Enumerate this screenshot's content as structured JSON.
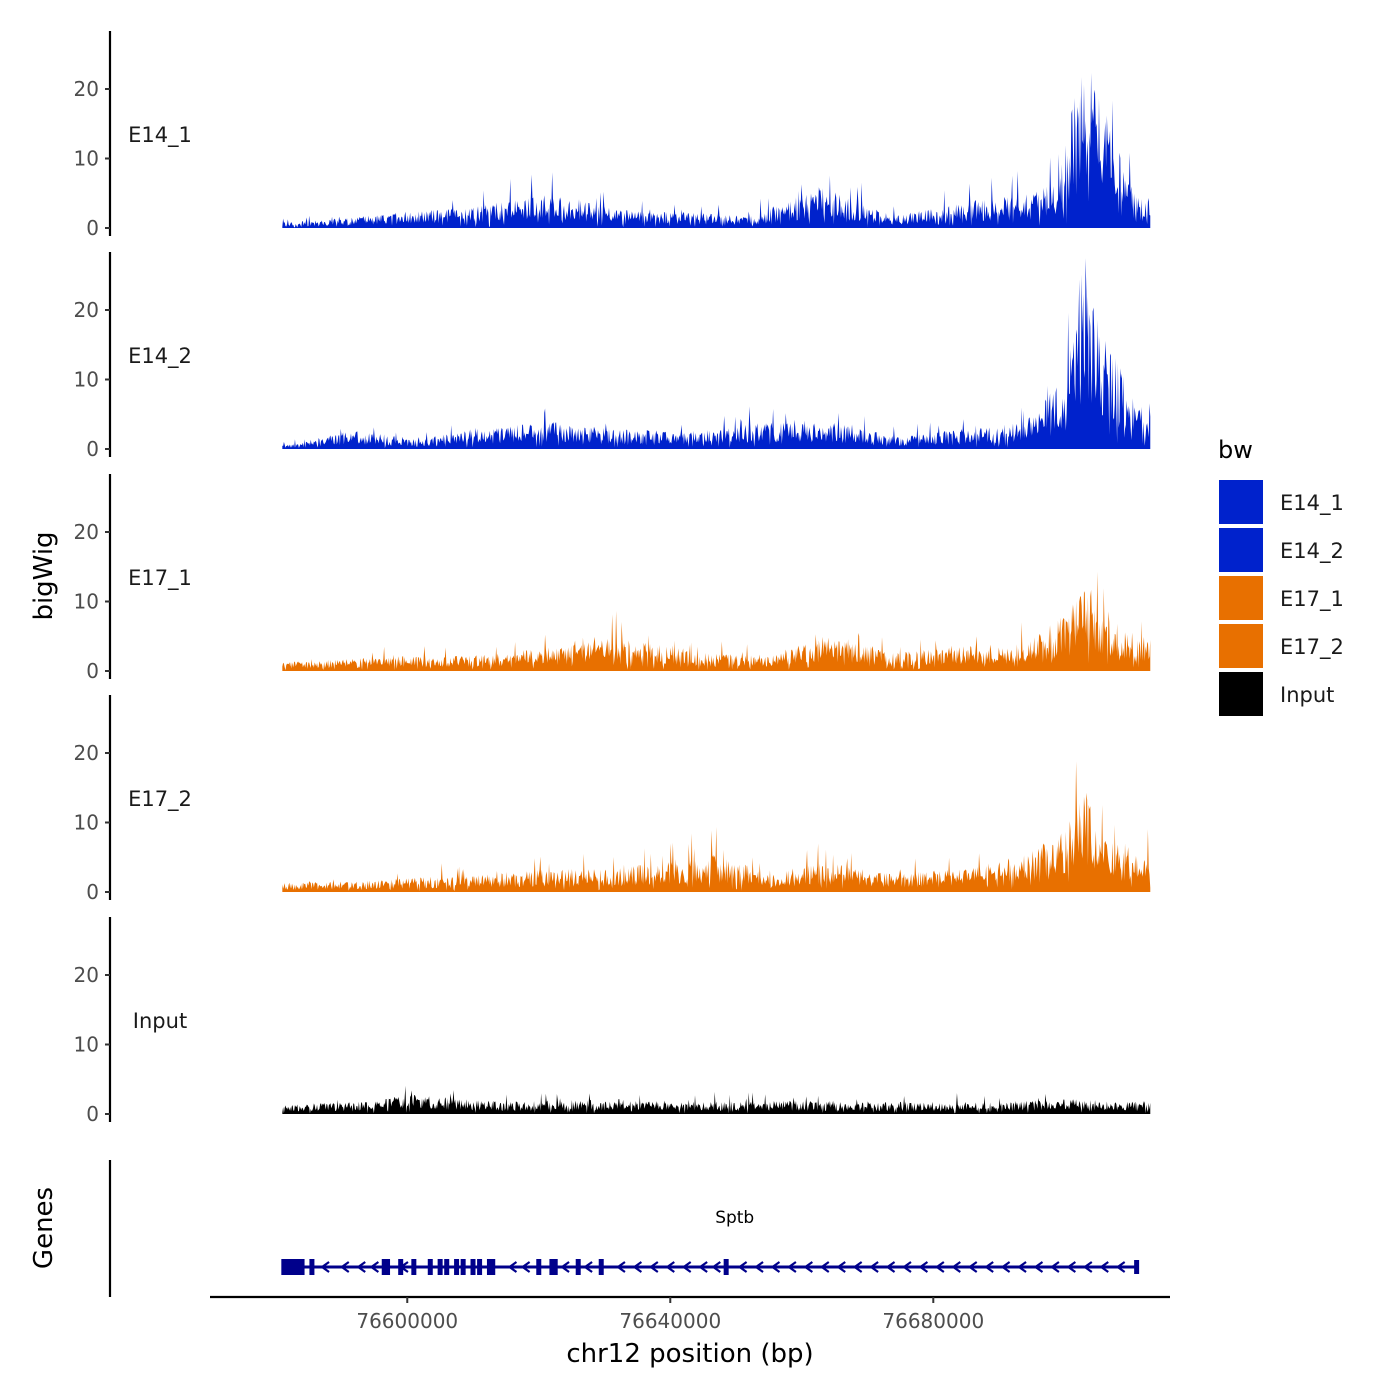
{
  "chart_data": {
    "type": "area",
    "title": "",
    "xlabel": "chr12 position (bp)",
    "ylabel": "bigWig",
    "xlim": [
      76570000,
      76716000
    ],
    "ylim": [
      0,
      28
    ],
    "x_ticks": [
      76600000,
      76640000,
      76680000
    ],
    "x_tick_labels": [
      "76600000",
      "76640000",
      "76680000"
    ],
    "y_ticks": [
      0,
      10,
      20
    ],
    "y_tick_labels": [
      "0",
      "10",
      "20"
    ],
    "data_range": [
      76581000,
      76713000
    ],
    "series": [
      {
        "name": "E14_1",
        "color": "#0022CC",
        "peaks": [
          {
            "x": 76581000,
            "y": 0.8
          },
          {
            "x": 76590000,
            "y": 1.2
          },
          {
            "x": 76600000,
            "y": 2.2
          },
          {
            "x": 76610000,
            "y": 2.8
          },
          {
            "x": 76622000,
            "y": 4.8
          },
          {
            "x": 76632000,
            "y": 2.4
          },
          {
            "x": 76645000,
            "y": 2.0
          },
          {
            "x": 76652000,
            "y": 1.6
          },
          {
            "x": 76663000,
            "y": 5.5
          },
          {
            "x": 76674000,
            "y": 1.6
          },
          {
            "x": 76686000,
            "y": 3.6
          },
          {
            "x": 76694000,
            "y": 4.5
          },
          {
            "x": 76699000,
            "y": 6.0
          },
          {
            "x": 76702000,
            "y": 19.5
          },
          {
            "x": 76704000,
            "y": 21.5
          },
          {
            "x": 76706000,
            "y": 15.5
          },
          {
            "x": 76711000,
            "y": 4.0
          }
        ]
      },
      {
        "name": "E14_2",
        "color": "#0022CC",
        "peaks": [
          {
            "x": 76582000,
            "y": 0.6
          },
          {
            "x": 76592000,
            "y": 2.6
          },
          {
            "x": 76602000,
            "y": 1.2
          },
          {
            "x": 76610000,
            "y": 2.8
          },
          {
            "x": 76622000,
            "y": 3.6
          },
          {
            "x": 76632000,
            "y": 2.6
          },
          {
            "x": 76645000,
            "y": 2.4
          },
          {
            "x": 76655000,
            "y": 3.6
          },
          {
            "x": 76663000,
            "y": 3.8
          },
          {
            "x": 76675000,
            "y": 1.6
          },
          {
            "x": 76686000,
            "y": 2.8
          },
          {
            "x": 76694000,
            "y": 3.6
          },
          {
            "x": 76700000,
            "y": 9.5
          },
          {
            "x": 76703000,
            "y": 27.0
          },
          {
            "x": 76704000,
            "y": 19.5
          },
          {
            "x": 76706000,
            "y": 15.0
          },
          {
            "x": 76711000,
            "y": 6.0
          }
        ]
      },
      {
        "name": "E17_1",
        "color": "#E87000",
        "peaks": [
          {
            "x": 76581000,
            "y": 1.2
          },
          {
            "x": 76590000,
            "y": 1.6
          },
          {
            "x": 76600000,
            "y": 2.0
          },
          {
            "x": 76610000,
            "y": 2.0
          },
          {
            "x": 76622000,
            "y": 3.2
          },
          {
            "x": 76632000,
            "y": 4.4
          },
          {
            "x": 76645000,
            "y": 2.4
          },
          {
            "x": 76655000,
            "y": 2.0
          },
          {
            "x": 76663000,
            "y": 4.6
          },
          {
            "x": 76674000,
            "y": 2.4
          },
          {
            "x": 76686000,
            "y": 3.4
          },
          {
            "x": 76694000,
            "y": 3.8
          },
          {
            "x": 76700000,
            "y": 7.5
          },
          {
            "x": 76703000,
            "y": 11.0
          },
          {
            "x": 76705000,
            "y": 10.5
          },
          {
            "x": 76707000,
            "y": 8.0
          },
          {
            "x": 76711000,
            "y": 4.5
          }
        ]
      },
      {
        "name": "E17_2",
        "color": "#E87000",
        "peaks": [
          {
            "x": 76581000,
            "y": 1.2
          },
          {
            "x": 76590000,
            "y": 1.4
          },
          {
            "x": 76600000,
            "y": 1.8
          },
          {
            "x": 76610000,
            "y": 2.4
          },
          {
            "x": 76620000,
            "y": 3.0
          },
          {
            "x": 76632000,
            "y": 3.2
          },
          {
            "x": 76648000,
            "y": 5.0
          },
          {
            "x": 76655000,
            "y": 2.4
          },
          {
            "x": 76663000,
            "y": 4.0
          },
          {
            "x": 76674000,
            "y": 2.4
          },
          {
            "x": 76686000,
            "y": 3.2
          },
          {
            "x": 76694000,
            "y": 5.0
          },
          {
            "x": 76700000,
            "y": 8.0
          },
          {
            "x": 76703000,
            "y": 14.5
          },
          {
            "x": 76705000,
            "y": 9.0
          },
          {
            "x": 76707000,
            "y": 7.0
          },
          {
            "x": 76711000,
            "y": 5.0
          }
        ]
      },
      {
        "name": "Input",
        "color": "#000000",
        "peaks": [
          {
            "x": 76581000,
            "y": 1.2
          },
          {
            "x": 76595000,
            "y": 1.8
          },
          {
            "x": 76600000,
            "y": 2.6
          },
          {
            "x": 76615000,
            "y": 1.6
          },
          {
            "x": 76630000,
            "y": 2.0
          },
          {
            "x": 76645000,
            "y": 1.6
          },
          {
            "x": 76660000,
            "y": 1.8
          },
          {
            "x": 76675000,
            "y": 1.6
          },
          {
            "x": 76690000,
            "y": 1.6
          },
          {
            "x": 76700000,
            "y": 2.0
          },
          {
            "x": 76711000,
            "y": 1.6
          }
        ]
      }
    ],
    "genes": [
      {
        "name": "Sptb",
        "start": 76581000,
        "end": 76711000,
        "strand": "-",
        "color": "#00008B",
        "exons": [
          76581500,
          76582000,
          76582500,
          76583000,
          76583500,
          76584000,
          76585500,
          76596500,
          76597000,
          76599000,
          76601000,
          76603500,
          76605000,
          76606000,
          76607500,
          76608500,
          76610000,
          76611000,
          76612500,
          76613000,
          76620000,
          76622000,
          76622500,
          76626000,
          76629500,
          76648500
        ],
        "introns_marked": [
          76587500,
          76590500,
          76593000,
          76595000,
          76599500,
          76616000,
          76618000,
          76624000,
          76627500,
          76632500,
          76635000,
          76637500,
          76640000,
          76642500,
          76645000,
          76647000,
          76651000,
          76653500,
          76656000,
          76658500,
          76661000,
          76663500,
          76666000,
          76668500,
          76671000,
          76673500,
          76676000,
          76678500,
          76681000,
          76683500,
          76686000,
          76688500,
          76691000,
          76693500,
          76696000,
          76698500,
          76701000,
          76703500,
          76706000,
          76708500
        ]
      }
    ]
  },
  "tracks_title": "bigWig",
  "genes_title": "Genes",
  "legend": {
    "title": "bw",
    "items": [
      {
        "label": "E14_1",
        "color": "#0022CC"
      },
      {
        "label": "E14_2",
        "color": "#0022CC"
      },
      {
        "label": "E17_1",
        "color": "#E87000"
      },
      {
        "label": "E17_2",
        "color": "#E87000"
      },
      {
        "label": "Input",
        "color": "#000000"
      }
    ]
  }
}
